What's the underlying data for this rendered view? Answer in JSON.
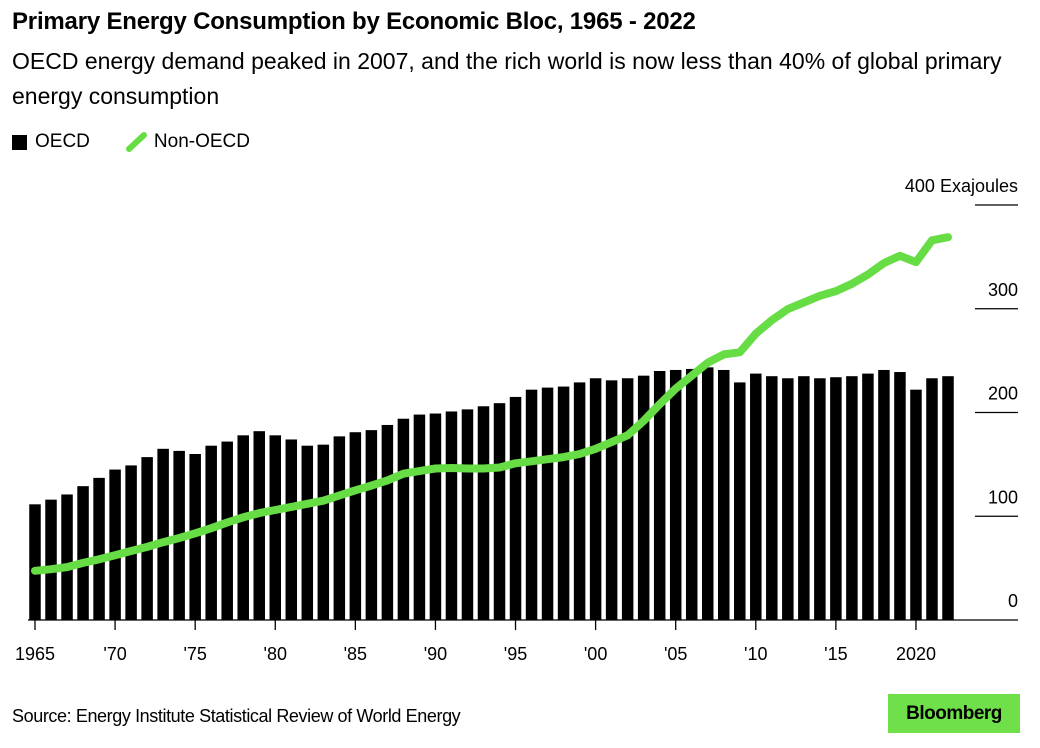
{
  "chart_data": {
    "type": "bar",
    "title": "Primary Energy Consumption by Economic Bloc, 1965 - 2022",
    "subtitle": "OECD energy demand peaked in 2007, and the rich world is now less than 40% of global primary energy consumption",
    "unit_label": "400 Exajoules",
    "ylim": [
      0,
      400
    ],
    "yticks": [
      "0",
      "100",
      "200",
      "300",
      "400 Exajoules"
    ],
    "ytick_values": [
      0,
      100,
      200,
      300,
      400
    ],
    "xtick_years": [
      1965,
      1970,
      1975,
      1980,
      1985,
      1990,
      1995,
      2000,
      2005,
      2010,
      2015,
      2020
    ],
    "xtick_labels": [
      "1965",
      "'70",
      "'75",
      "'80",
      "'85",
      "'90",
      "'95",
      "'00",
      "'05",
      "'10",
      "'15",
      "2020"
    ],
    "x_start": 1965,
    "x_end": 2022,
    "legend": [
      {
        "name": "OECD",
        "kind": "bar",
        "color": "#000000"
      },
      {
        "name": "Non-OECD",
        "kind": "line",
        "color": "#66dd44"
      }
    ],
    "legend_position": "top-left",
    "series": [
      {
        "name": "OECD",
        "type": "bar",
        "color": "#000000",
        "values": [
          111.5,
          116,
          121,
          129,
          137,
          145,
          149,
          157,
          165,
          163,
          160,
          168,
          172,
          178,
          182,
          178,
          174,
          168,
          169,
          177,
          181,
          183,
          188,
          194,
          198,
          199,
          201,
          203,
          206,
          209,
          215,
          222,
          224,
          225,
          229,
          233,
          231,
          233,
          235.5,
          240,
          241,
          242,
          243.5,
          241,
          229,
          237.5,
          235,
          233,
          235,
          233,
          234,
          235,
          237.5,
          241,
          239,
          222,
          233,
          235
        ]
      },
      {
        "name": "Non-OECD",
        "type": "line",
        "color": "#66dd44",
        "values": [
          47.4,
          49,
          51,
          55,
          58.5,
          62.5,
          66.5,
          70.5,
          75,
          79,
          83.6,
          88.5,
          94,
          99,
          103,
          106,
          109,
          112,
          115,
          120,
          125,
          129.5,
          134.6,
          141,
          143.5,
          146,
          146.5,
          146,
          146,
          147,
          151,
          153,
          155,
          157,
          160,
          165,
          171.5,
          178,
          192,
          208,
          223,
          235.5,
          248,
          256,
          258,
          276,
          289,
          299.7,
          306,
          312.5,
          317,
          324,
          333,
          344,
          351,
          345,
          366,
          369
        ]
      }
    ]
  },
  "footer": {
    "source": "Source: Energy Institute Statistical Review of World Energy",
    "logo": "Bloomberg"
  }
}
